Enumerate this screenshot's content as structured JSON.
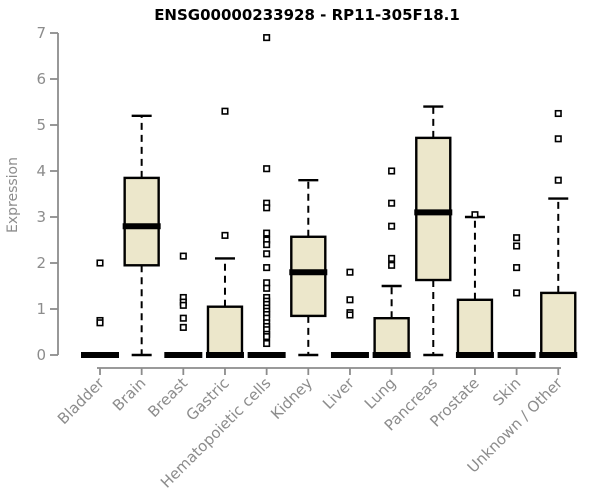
{
  "colors": {
    "background": "#ffffff",
    "box_fill": "#ece7cb",
    "box_stroke": "#000000",
    "median": "#000000",
    "whisker": "#000000",
    "outlier_stroke": "#000000",
    "axis": "#8c8c8c",
    "tick_label": "#8c8c8c",
    "title": "#000000"
  },
  "chart_data": {
    "type": "boxplot",
    "title": "ENSG00000233928 - RP11-305F18.1",
    "xlabel": "",
    "ylabel": "Expression",
    "ylim": [
      0,
      7
    ],
    "yticks": [
      0,
      1,
      2,
      3,
      4,
      5,
      6,
      7
    ],
    "grid": "off",
    "categories": [
      "Bladder",
      "Brain",
      "Breast",
      "Gastric",
      "Hematopoietic cells",
      "Kidney",
      "Liver",
      "Lung",
      "Pancreas",
      "Prostate",
      "Skin",
      "Unknown / Other"
    ],
    "series": [
      {
        "name": "Bladder",
        "median": 0,
        "q1": 0,
        "q3": 0,
        "whisker_low": 0,
        "whisker_high": 0,
        "outliers": [
          2.0,
          0.75,
          0.7
        ]
      },
      {
        "name": "Brain",
        "median": 2.8,
        "q1": 1.95,
        "q3": 3.85,
        "whisker_low": 0,
        "whisker_high": 5.2,
        "outliers": []
      },
      {
        "name": "Breast",
        "median": 0,
        "q1": 0,
        "q3": 0,
        "whisker_low": 0,
        "whisker_high": 0,
        "outliers": [
          2.15,
          1.25,
          1.15,
          1.08,
          0.8,
          0.6
        ]
      },
      {
        "name": "Gastric",
        "median": 0,
        "q1": 0,
        "q3": 1.05,
        "whisker_low": 0,
        "whisker_high": 2.1,
        "outliers": [
          5.3,
          2.6
        ]
      },
      {
        "name": "Hematopoietic cells",
        "median": 0,
        "q1": 0,
        "q3": 0,
        "whisker_low": 0,
        "whisker_high": 0,
        "outliers": [
          6.9,
          4.05,
          3.3,
          3.2,
          2.65,
          2.5,
          2.4,
          2.2,
          1.9,
          1.57,
          1.45,
          1.25,
          1.17,
          1.1,
          1.02,
          0.95,
          0.88,
          0.8,
          0.7,
          0.62,
          0.55,
          0.45,
          0.4,
          0.25
        ]
      },
      {
        "name": "Kidney",
        "median": 1.8,
        "q1": 0.85,
        "q3": 2.57,
        "whisker_low": 0,
        "whisker_high": 3.8,
        "outliers": []
      },
      {
        "name": "Liver",
        "median": 0,
        "q1": 0,
        "q3": 0,
        "whisker_low": 0,
        "whisker_high": 0,
        "outliers": [
          1.8,
          1.2,
          0.92,
          0.87
        ]
      },
      {
        "name": "Lung",
        "median": 0,
        "q1": 0,
        "q3": 0.8,
        "whisker_low": 0,
        "whisker_high": 1.5,
        "outliers": [
          4.0,
          3.3,
          2.8,
          2.1,
          1.95
        ]
      },
      {
        "name": "Pancreas",
        "median": 3.1,
        "q1": 1.63,
        "q3": 4.72,
        "whisker_low": 0,
        "whisker_high": 5.4,
        "outliers": []
      },
      {
        "name": "Prostate",
        "median": 0,
        "q1": 0,
        "q3": 1.2,
        "whisker_low": 0,
        "whisker_high": 3.0,
        "outliers": [
          3.05
        ]
      },
      {
        "name": "Skin",
        "median": 0,
        "q1": 0,
        "q3": 0,
        "whisker_low": 0,
        "whisker_high": 0,
        "outliers": [
          2.55,
          2.37,
          1.9,
          1.35
        ]
      },
      {
        "name": "Unknown / Other",
        "median": 0,
        "q1": 0,
        "q3": 1.35,
        "whisker_low": 0,
        "whisker_high": 3.4,
        "outliers": [
          5.25,
          4.7,
          3.8
        ]
      }
    ]
  }
}
